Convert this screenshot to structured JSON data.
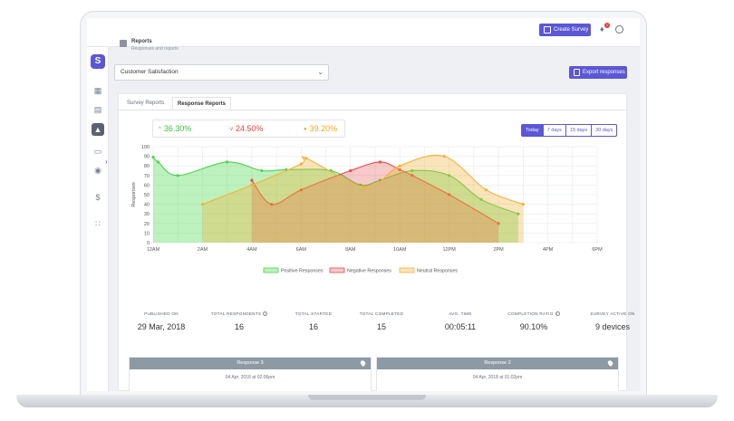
{
  "topbar": {
    "create_label": "Create Survey",
    "notification_count": "1"
  },
  "header": {
    "title": "Reports",
    "subtitle": "Responses and reports"
  },
  "survey_select": {
    "value": "Customer Satisfaction"
  },
  "export_label": "Export responses",
  "tabs": [
    {
      "label": "Survey Reports"
    },
    {
      "label": "Response Reports"
    }
  ],
  "stats": [
    {
      "arrow": "^",
      "value": "36.30%",
      "color": "#3fbf3f"
    },
    {
      "arrow": "v",
      "value": "24.50%",
      "color": "#e0463f"
    },
    {
      "arrow": "●",
      "value": "39.20%",
      "color": "#f0a81e"
    }
  ],
  "range_buttons": [
    {
      "label": "Today"
    },
    {
      "label": "7 days"
    },
    {
      "label": "15 days"
    },
    {
      "label": "30 days"
    }
  ],
  "chart_data": {
    "type": "area",
    "ylabel": "Responses",
    "ylim": [
      0,
      100
    ],
    "yticks": [
      0,
      10,
      20,
      30,
      40,
      50,
      60,
      70,
      80,
      90,
      100
    ],
    "xticks": [
      "12AM",
      "2AM",
      "4AM",
      "6AM",
      "8AM",
      "10AM",
      "12PM",
      "2PM",
      "4PM",
      "6PM"
    ],
    "grid": true,
    "legend_position": "bottom",
    "series": [
      {
        "name": "Positive Responses",
        "color": "#4cd44c",
        "x": [
          0,
          0.2,
          1,
          3,
          4.4,
          5.4,
          7.2,
          8.4,
          9.2,
          10.5,
          12,
          13.3,
          14.8
        ],
        "y": [
          89,
          84,
          70,
          84,
          75,
          76,
          75,
          60,
          65,
          75,
          70,
          45,
          30
        ]
      },
      {
        "name": "Negative Responses",
        "color": "#e84c4c",
        "x": [
          4,
          4.8,
          6,
          8,
          9.2,
          10,
          10.5,
          12,
          14
        ],
        "y": [
          65,
          40,
          55,
          75,
          84,
          76,
          70,
          50,
          20
        ]
      },
      {
        "name": "Neutral Responses",
        "color": "#f2b33a",
        "x": [
          2,
          4,
          6,
          6.2,
          8.6,
          10,
          11.8,
          13.5,
          15
        ],
        "y": [
          40,
          60,
          82,
          88,
          58,
          80,
          90,
          55,
          40
        ]
      }
    ]
  },
  "summary": [
    {
      "label": "PUBLISHED ON",
      "value": "29 Mar, 2018",
      "info": false
    },
    {
      "label": "TOTAL RESPONDENTS",
      "value": "16",
      "info": true
    },
    {
      "label": "TOTAL STARTED",
      "value": "16",
      "info": false
    },
    {
      "label": "TOTAL COMPLETED",
      "value": "15",
      "info": false
    },
    {
      "label": "AVG. TIME",
      "value": "00:05:11",
      "info": false
    },
    {
      "label": "COMPLETION RATIO",
      "value": "90.10%",
      "info": true
    },
    {
      "label": "SURVEY ACTIVE ON",
      "value": "9 devices",
      "info": false
    }
  ],
  "responses": [
    {
      "title": "Response 3",
      "date": "04 Apr, 2018 at 02:06pm"
    },
    {
      "title": "Response 2",
      "date": "04 Apr, 2018 at 01:02pm"
    }
  ]
}
